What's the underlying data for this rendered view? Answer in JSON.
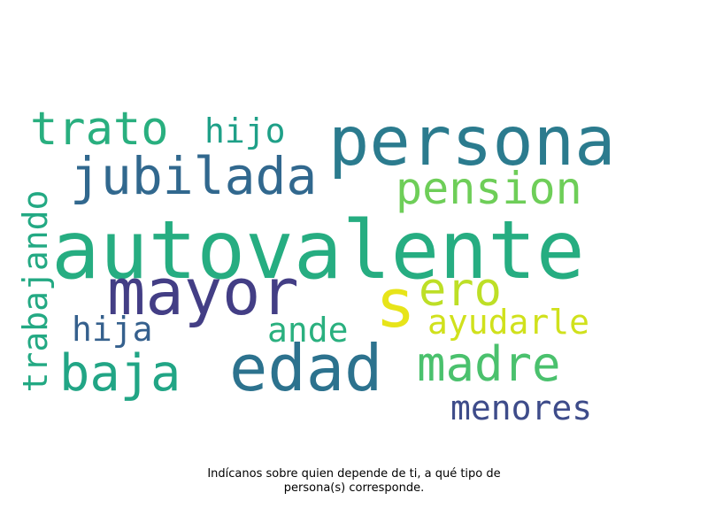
{
  "words": {
    "autovalente": {
      "text": "autovalente",
      "color": "#26ad81"
    },
    "persona": {
      "text": "persona",
      "color": "#2b7b8e"
    },
    "mayor": {
      "text": "mayor",
      "color": "#433e85"
    },
    "edad": {
      "text": "edad",
      "color": "#2c728e"
    },
    "jubilada": {
      "text": "jubilada",
      "color": "#31688e"
    },
    "trato": {
      "text": "trato",
      "color": "#29af7f"
    },
    "madre": {
      "text": "madre",
      "color": "#4ac16d"
    },
    "baja": {
      "text": "baja",
      "color": "#21a585"
    },
    "pension": {
      "text": "pension",
      "color": "#6ece58"
    },
    "ero": {
      "text": "ero",
      "color": "#bddf26"
    },
    "s": {
      "text": "s",
      "color": "#e7e419"
    },
    "hijo": {
      "text": "hijo",
      "color": "#1fa088"
    },
    "hija": {
      "text": "hija",
      "color": "#35608d"
    },
    "ande": {
      "text": "ande",
      "color": "#2ab07f"
    },
    "ayudarle": {
      "text": "ayudarle",
      "color": "#d0e11c"
    },
    "menores": {
      "text": "menores",
      "color": "#3e4c8a"
    },
    "trabajando": {
      "text": "trabajando",
      "color": "#23a983"
    }
  },
  "caption": {
    "line1": "Indícanos sobre quien depende de ti, a qué tipo de",
    "line2": "persona(s) corresponde."
  }
}
